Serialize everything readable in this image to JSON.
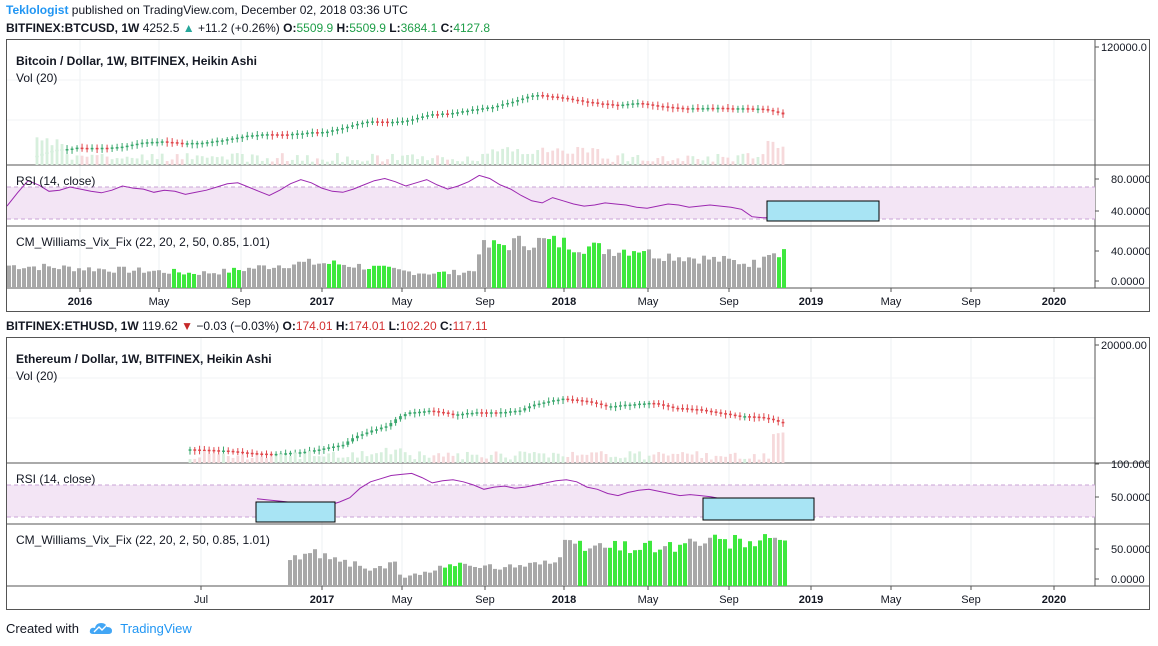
{
  "publish_line": {
    "author": "Teklologist",
    "text": " published on TradingView.com, December 02, 2018 03:36 UTC"
  },
  "charts": [
    {
      "symbol_line": {
        "symbol": "BITFINEX:BTCUSD, 1W",
        "price": "4252.5",
        "change_arrow": "▲",
        "change": "+11.2 (+0.26%)",
        "o_label": "O:",
        "o": "5509.9",
        "h_label": "H:",
        "h": "5509.9",
        "l_label": "L:",
        "l": "3684.1",
        "c_label": "C:",
        "c": "4127.8",
        "direction": "up"
      },
      "title": "Bitcoin / Dollar, 1W, BITFINEX, Heikin Ashi",
      "vol_label": "Vol (20)",
      "rsi_label": "RSI (14, close)",
      "vix_label": "CM_Williams_Vix_Fix (22, 20, 2, 50, 0.85, 1.01)",
      "price_axis_label": "120000.0",
      "rsi_axis": [
        "80.0000",
        "40.0000"
      ],
      "vix_axis": [
        "40.0000",
        "0.0000"
      ],
      "time_axis": [
        "2016",
        "May",
        "Sep",
        "2017",
        "May",
        "Sep",
        "2018",
        "May",
        "Sep",
        "2019",
        "May",
        "Sep",
        "2020"
      ]
    },
    {
      "symbol_line": {
        "symbol": "BITFINEX:ETHUSD, 1W",
        "price": "119.62",
        "change_arrow": "▼",
        "change": "−0.03 (−0.03%)",
        "o_label": "O:",
        "o": "174.01",
        "h_label": "H:",
        "h": "174.01",
        "l_label": "L:",
        "l": "102.20",
        "c_label": "C:",
        "c": "117.11",
        "direction": "down"
      },
      "title": "Ethereum / Dollar, 1W, BITFINEX, Heikin Ashi",
      "vol_label": "Vol (20)",
      "rsi_label": "RSI (14, close)",
      "vix_label": "CM_Williams_Vix_Fix (22, 20, 2, 50, 0.85, 1.01)",
      "price_axis_label": "20000.00",
      "rsi_axis": [
        "100.0000",
        "50.0000"
      ],
      "vix_axis": [
        "50.0000",
        "0.0000"
      ],
      "time_axis": [
        "Jul",
        "2017",
        "May",
        "Sep",
        "2018",
        "May",
        "Sep",
        "2019",
        "May",
        "Sep",
        "2020"
      ]
    }
  ],
  "footer": {
    "prefix": "Created with",
    "brand": "TradingView"
  },
  "colors": {
    "up": "#26a69a",
    "candle_up": "#3aa76d",
    "candle_down": "#e0474c",
    "rsi_line": "#9c27b0",
    "rsi_band": "#f3e5f5",
    "vix_gray": "#a8a8a8",
    "vix_green": "#3ee83e",
    "highlight_box": "#a8e4f4"
  },
  "chart_data": [
    {
      "type": "candlestick",
      "title": "Bitcoin / Dollar, 1W, BITFINEX, Heikin Ashi",
      "x_range": [
        "2015-10",
        "2020-02"
      ],
      "close_series_usd": [
        250,
        380,
        430,
        420,
        450,
        600,
        660,
        580,
        600,
        720,
        950,
        1100,
        1050,
        1200,
        1300,
        1800,
        2600,
        2500,
        2800,
        4200,
        4500,
        5800,
        7000,
        10000,
        16000,
        14000,
        11000,
        9000,
        8000,
        9000,
        7500,
        6500,
        6400,
        6500,
        6300,
        6200,
        4200
      ],
      "rsi_range": [
        0,
        100
      ],
      "rsi_levels": [
        70,
        30
      ],
      "vix_range": [
        0,
        60
      ]
    },
    {
      "type": "candlestick",
      "title": "Ethereum / Dollar, 1W, BITFINEX, Heikin Ashi",
      "x_range": [
        "2016-05",
        "2020-02"
      ],
      "close_series_usd": [
        12,
        11,
        10,
        8,
        8,
        9,
        12,
        18,
        50,
        90,
        300,
        350,
        250,
        300,
        300,
        350,
        700,
        1000,
        800,
        500,
        600,
        700,
        450,
        400,
        300,
        220,
        200,
        115
      ],
      "rsi_range": [
        0,
        100
      ],
      "rsi_levels": [
        70,
        30
      ],
      "vix_range": [
        0,
        80
      ]
    }
  ]
}
